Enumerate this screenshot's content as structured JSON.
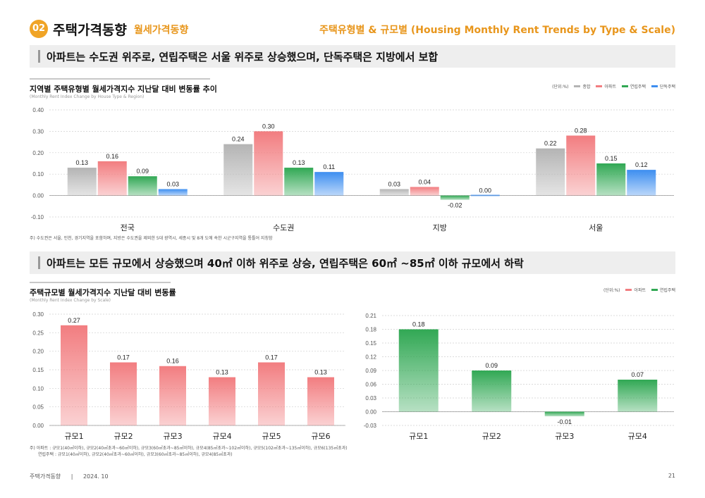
{
  "header": {
    "section_number": "02",
    "section_title": "주택가격동향",
    "section_subtitle": "월세가격동향",
    "right_title": "주택유형별 & 규모별 (Housing Monthly Rent Trends by Type & Scale)"
  },
  "headline1": "아파트는 수도권 위주로, 연립주택은 서울 위주로 상승했으며, 단독주택은 지방에서 보합",
  "headline2": "아파트는 모든 규모에서 상승했으며 40㎡ 이하 위주로 상승, 연립주택은 60㎡ ~85㎡ 이하 규모에서 하락",
  "chart1": {
    "title": "지역별 주택유형별 월세가격지수 지난달 대비 변동률 추이",
    "subtitle": "(Monthly Rent Index Change by House Type & Region)",
    "unit": "(단위:%)",
    "legend": [
      "종합",
      "아파트",
      "연립주택",
      "단독주택"
    ],
    "note": "주) 수도권은 서울, 인천, 경기지역을 포함하며, 지방은 수도권을 제외한 5대 광역시, 세종시 및 8개 도에 속한 시군구지역을 통틀어 지칭함"
  },
  "chart2": {
    "title": "주택규모별 월세가격지수 지난달 대비 변동률",
    "subtitle": "(Monthly Rent Index Change by Scale)",
    "unit": "(단위:%)",
    "legend": [
      "아파트",
      "연립주택"
    ],
    "note_line1": "주) 아파트 : 규모1(40㎡이하), 규모2(40㎡초과~60㎡이하), 규모3(60㎡초과~85㎡이하), 규모4(85㎡초과~102㎡이하), 규모5(102㎡초과~135㎡이하), 규모6(135㎡초과)",
    "note_line2": "연립주택 : 규모1(40㎡이하), 규모2(40㎡초과~60㎡이하), 규모3(60㎡초과~85㎡이하), 규모4(85㎡초과)"
  },
  "colors": {
    "accent": "#f0a426",
    "total": "#b4b4b4",
    "apartment": "#f27d80",
    "rowhouse": "#31a854",
    "detached": "#3d8ef0"
  },
  "chart_data": [
    {
      "type": "bar",
      "categories": [
        "전국",
        "수도권",
        "지방",
        "서울"
      ],
      "series": [
        {
          "name": "종합",
          "values": [
            0.13,
            0.24,
            0.03,
            0.22
          ]
        },
        {
          "name": "아파트",
          "values": [
            0.16,
            0.3,
            0.04,
            0.28
          ]
        },
        {
          "name": "연립주택",
          "values": [
            0.09,
            0.13,
            -0.02,
            0.15
          ]
        },
        {
          "name": "단독주택",
          "values": [
            0.03,
            0.11,
            0.0,
            0.12
          ]
        }
      ],
      "value_labels": [
        [
          "0.13",
          "0.16",
          "0.09",
          "0.03"
        ],
        [
          "0.24",
          "0.30",
          "0.13",
          "0.11"
        ],
        [
          "0.03",
          "0.04",
          "-0.02",
          "0.00"
        ],
        [
          "0.22",
          "0.28",
          "0.15",
          "0.12"
        ]
      ],
      "yticks": [
        "0.40",
        "0.30",
        "0.20",
        "0.10",
        "0.00",
        "-0.10"
      ],
      "ylim": [
        -0.1,
        0.4
      ],
      "grid": true
    },
    {
      "type": "bar",
      "categories": [
        "규모1",
        "규모2",
        "규모3",
        "규모4",
        "규모5",
        "규모6"
      ],
      "series": [
        {
          "name": "아파트",
          "values": [
            0.27,
            0.17,
            0.16,
            0.13,
            0.17,
            0.13
          ]
        }
      ],
      "value_labels": [
        "0.27",
        "0.17",
        "0.16",
        "0.13",
        "0.17",
        "0.13"
      ],
      "yticks": [
        "0.30",
        "0.25",
        "0.20",
        "0.15",
        "0.10",
        "0.05",
        "0.00"
      ],
      "ylim": [
        0,
        0.3
      ],
      "grid": true
    },
    {
      "type": "bar",
      "categories": [
        "규모1",
        "규모2",
        "규모3",
        "규모4"
      ],
      "series": [
        {
          "name": "연립주택",
          "values": [
            0.18,
            0.09,
            -0.01,
            0.07
          ]
        }
      ],
      "value_labels": [
        "0.18",
        "0.09",
        "-0.01",
        "0.07"
      ],
      "yticks": [
        "0.21",
        "0.18",
        "0.15",
        "0.12",
        "0.09",
        "0.06",
        "0.03",
        "0.00",
        "-0.03"
      ],
      "ylim": [
        -0.03,
        0.21
      ],
      "grid": true
    }
  ],
  "footer": {
    "left": "주택가격동향",
    "separator": "|",
    "date": "2024. 10",
    "page": "21"
  }
}
